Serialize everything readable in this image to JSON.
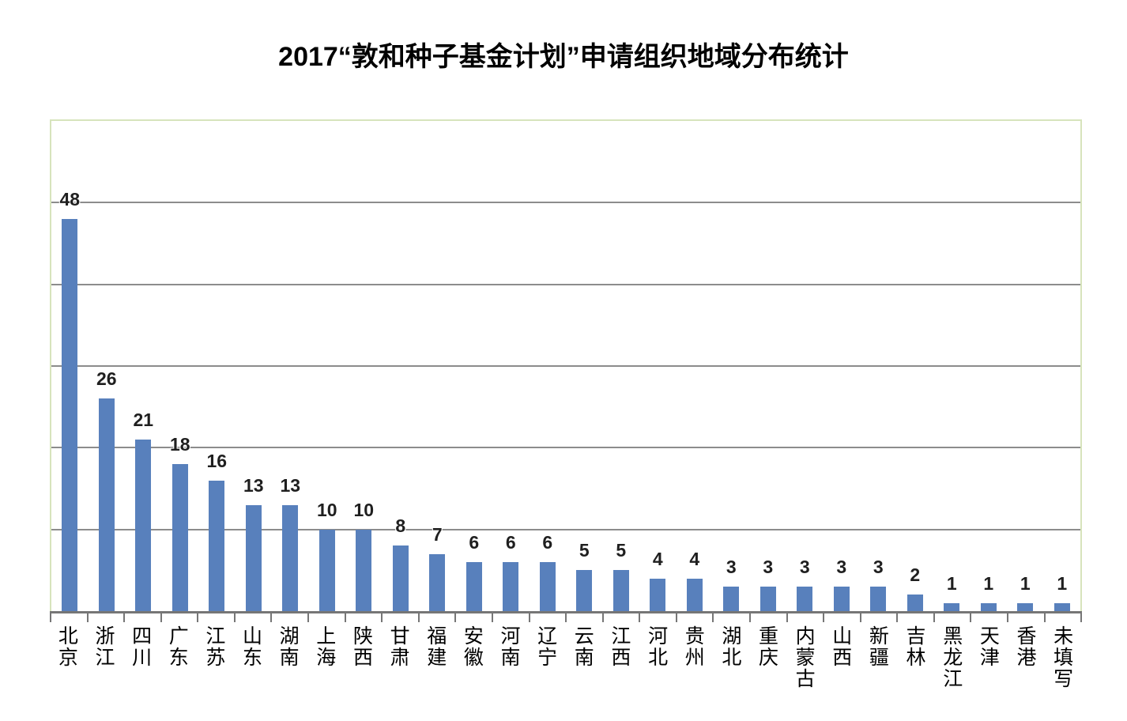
{
  "chart_data": {
    "type": "bar",
    "title": "2017“敦和种子基金计划”申请组织地域分布统计",
    "categories": [
      "北京",
      "浙江",
      "四川",
      "广东",
      "江苏",
      "山东",
      "湖南",
      "上海",
      "陕西",
      "甘肃",
      "福建",
      "安徽",
      "河南",
      "辽宁",
      "云南",
      "江西",
      "河北",
      "贵州",
      "湖北",
      "重庆",
      "内蒙古",
      "山西",
      "新疆",
      "吉林",
      "黑龙江",
      "天津",
      "香港",
      "未填写"
    ],
    "values": [
      48,
      26,
      21,
      18,
      16,
      13,
      13,
      10,
      10,
      8,
      7,
      6,
      6,
      6,
      5,
      5,
      4,
      4,
      3,
      3,
      3,
      3,
      3,
      2,
      1,
      1,
      1,
      1
    ],
    "xlabel": "",
    "ylabel": "",
    "ylim": [
      0,
      60
    ],
    "gridline_interval": 10,
    "grid": true,
    "legend": false,
    "data_labels": "outside-end",
    "bar_color": "#5880BC",
    "plot_border_color": "#D7E4BC",
    "gridline_color": "#8C8C8C",
    "axis_color": "#767676",
    "value_label_color": "#1F1F1F"
  }
}
